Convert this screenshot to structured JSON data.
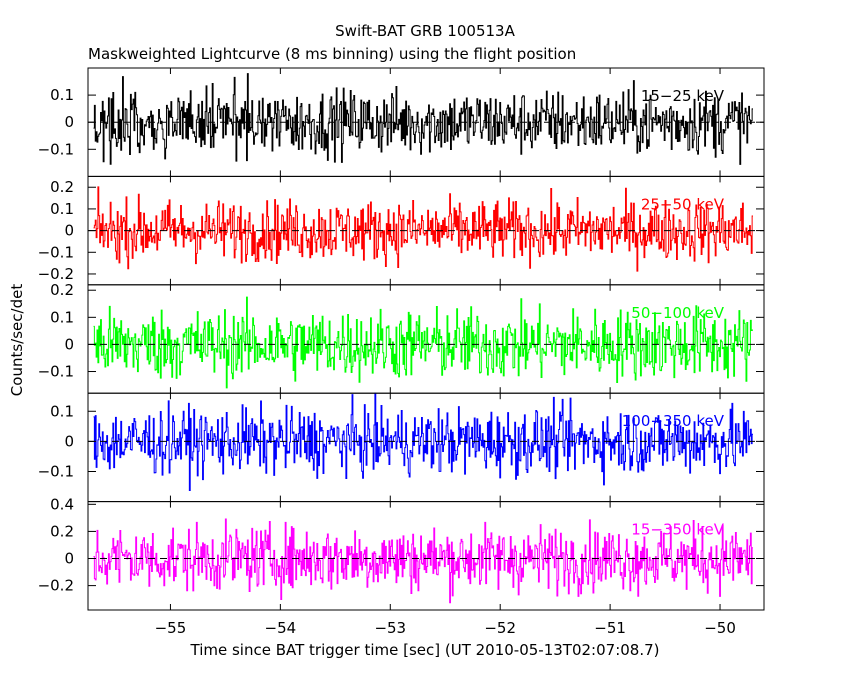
{
  "chart_data": {
    "type": "line",
    "title": "Swift-BAT GRB 100513A",
    "subtitle": "Maskweighted Lightcurve (8 ms binning) using the flight position",
    "xlabel": "Time since BAT trigger time [sec] (UT 2010-05-13T02:07:08.7)",
    "ylabel": "Counts/sec/det",
    "xlim": [
      -55.75,
      -49.6
    ],
    "x_range_data": [
      -55.7,
      -49.7
    ],
    "bin_width_sec": 0.008,
    "x_ticks": [
      -55,
      -54,
      -53,
      -52,
      -51,
      -50
    ],
    "x_tick_labels": [
      "−55",
      "−54",
      "−53",
      "−52",
      "−51",
      "−50"
    ],
    "grid": false,
    "zero_line": "dashed",
    "panels": [
      {
        "name": "15-25 keV",
        "label": "15−25 keV",
        "color": "#000000",
        "ylim": [
          -0.2,
          0.2
        ],
        "amplitude": 0.06,
        "y_ticks": [
          -0.1,
          0,
          0.1
        ],
        "y_tick_labels": [
          "−0.1",
          "0",
          "0.1"
        ]
      },
      {
        "name": "25-50 keV",
        "label": "25−50 keV",
        "color": "#ff0000",
        "ylim": [
          -0.25,
          0.25
        ],
        "amplitude": 0.07,
        "y_ticks": [
          -0.2,
          -0.1,
          0,
          0.1,
          0.2
        ],
        "y_tick_labels": [
          "−0.2",
          "−0.1",
          "0",
          "0.1",
          "0.2"
        ]
      },
      {
        "name": "50-100 keV",
        "label": "50−100 keV",
        "color": "#00ff00",
        "ylim": [
          -0.18,
          0.22
        ],
        "amplitude": 0.065,
        "y_ticks": [
          -0.1,
          0,
          0.1,
          0.2
        ],
        "y_tick_labels": [
          "−0.1",
          "0",
          "0.1",
          "0.2"
        ]
      },
      {
        "name": "100-350 keV",
        "label": "100−350 keV",
        "color": "#0000ff",
        "ylim": [
          -0.2,
          0.16
        ],
        "amplitude": 0.055,
        "y_ticks": [
          -0.1,
          0,
          0.1
        ],
        "y_tick_labels": [
          "−0.1",
          "0",
          "0.1"
        ]
      },
      {
        "name": "15-350 keV",
        "label": "15−350 keV",
        "color": "#ff00ff",
        "ylim": [
          -0.38,
          0.42
        ],
        "amplitude": 0.12,
        "y_ticks": [
          -0.2,
          0,
          0.2,
          0.4
        ],
        "y_tick_labels": [
          "−0.2",
          "0",
          "0.2",
          "0.4"
        ]
      }
    ]
  }
}
